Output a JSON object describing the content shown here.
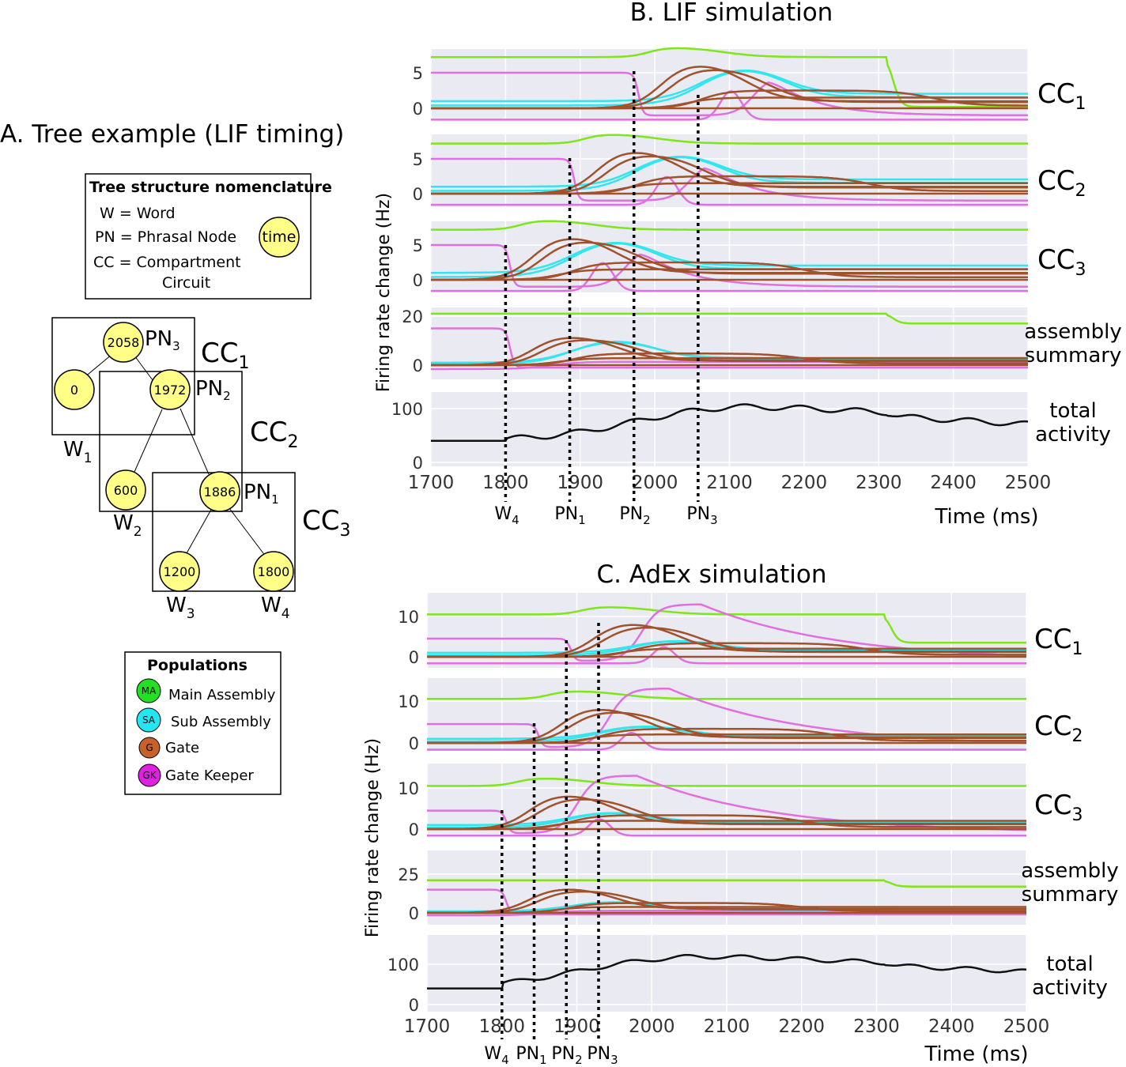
{
  "panel_a": {
    "title": "A. Tree example (LIF timing)",
    "nomenclature": {
      "title": "Tree structure nomenclature",
      "lines": [
        "W = Word",
        "PN = Phrasal Node",
        "CC = Compartment",
        "Circuit"
      ],
      "time_label": "time"
    },
    "nodes": [
      {
        "value": "2058",
        "label": "PN",
        "sub": "3"
      },
      {
        "value": "0",
        "label": "W",
        "sub": "1"
      },
      {
        "value": "1972",
        "label": "PN",
        "sub": "2"
      },
      {
        "value": "600",
        "label": "W",
        "sub": "2"
      },
      {
        "value": "1886",
        "label": "PN",
        "sub": "1"
      },
      {
        "value": "1200",
        "label": "W",
        "sub": "3"
      },
      {
        "value": "1800",
        "label": "W",
        "sub": "4"
      }
    ],
    "cc_labels": [
      {
        "label": "CC",
        "sub": "1"
      },
      {
        "label": "CC",
        "sub": "2"
      },
      {
        "label": "CC",
        "sub": "3"
      }
    ],
    "populations": {
      "title": "Populations",
      "items": [
        {
          "abbr": "MA",
          "name": "Main Assembly",
          "color": "#22e022"
        },
        {
          "abbr": "SA",
          "name": "Sub Assembly",
          "color": "#22e6f0"
        },
        {
          "abbr": "G",
          "name": "Gate",
          "color": "#c8602a"
        },
        {
          "abbr": "GK",
          "name": "Gate Keeper",
          "color": "#e020e0"
        }
      ]
    }
  },
  "chart_data": [
    {
      "type": "line",
      "title": "B. LIF simulation",
      "xlabel": "Time (ms)",
      "ylabel": "Firing rate change (Hz)",
      "xlim": [
        1700,
        2500
      ],
      "xticks": [
        "1700",
        "1800",
        "1900",
        "2000",
        "2100",
        "2200",
        "2300",
        "2400",
        "2500"
      ],
      "subplots": [
        {
          "label": "CC",
          "sub": "1",
          "yticks": [
            "5",
            "0"
          ]
        },
        {
          "label": "CC",
          "sub": "2",
          "yticks": [
            "5",
            "0"
          ]
        },
        {
          "label": "CC",
          "sub": "3",
          "yticks": [
            "5",
            "0"
          ]
        },
        {
          "label": "assembly\nsummary",
          "yticks": [
            "20",
            "0"
          ]
        },
        {
          "label": "total\nactivity",
          "yticks": [
            "100",
            "0"
          ]
        }
      ],
      "markers": [
        {
          "label": "W",
          "sub": "4",
          "t": 1800
        },
        {
          "label": "PN",
          "sub": "1",
          "t": 1886
        },
        {
          "label": "PN",
          "sub": "2",
          "t": 1972
        },
        {
          "label": "PN",
          "sub": "3",
          "t": 2058
        }
      ],
      "series_colors": {
        "main_assembly": "#7ee619",
        "sub_assembly": "#33e6ee",
        "gate": "#a0522d",
        "gate_keeper": "#e070e0",
        "total": "#111111"
      }
    },
    {
      "type": "line",
      "title": "C. AdEx simulation",
      "xlabel": "Time (ms)",
      "ylabel": "Firing rate change (Hz)",
      "xlim": [
        1700,
        2500
      ],
      "xticks": [
        "1700",
        "1800",
        "1900",
        "2000",
        "2100",
        "2200",
        "2300",
        "2400",
        "2500"
      ],
      "subplots": [
        {
          "label": "CC",
          "sub": "1",
          "yticks": [
            "10",
            "0"
          ]
        },
        {
          "label": "CC",
          "sub": "2",
          "yticks": [
            "10",
            "0"
          ]
        },
        {
          "label": "CC",
          "sub": "3",
          "yticks": [
            "10",
            "0"
          ]
        },
        {
          "label": "assembly\nsummary",
          "yticks": [
            "25",
            "0"
          ]
        },
        {
          "label": "total\nactivity",
          "yticks": [
            "100",
            "0"
          ]
        }
      ],
      "markers": [
        {
          "label": "W",
          "sub": "4",
          "t": 1800
        },
        {
          "label": "PN",
          "sub": "1",
          "t": 1843
        },
        {
          "label": "PN",
          "sub": "2",
          "t": 1886
        },
        {
          "label": "PN",
          "sub": "3",
          "t": 1929
        }
      ],
      "series_colors": {
        "main_assembly": "#7ee619",
        "sub_assembly": "#33e6ee",
        "gate": "#a0522d",
        "gate_keeper": "#e070e0",
        "total": "#111111"
      }
    }
  ]
}
